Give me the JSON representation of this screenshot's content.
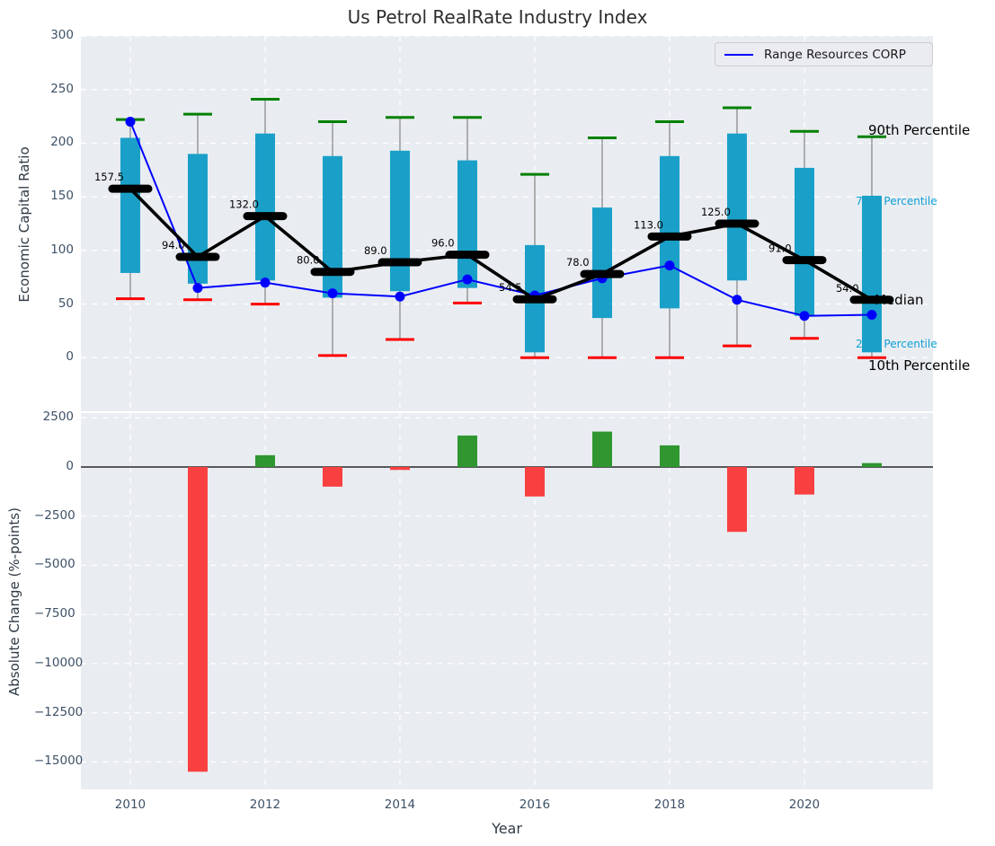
{
  "title": "Us Petrol RealRate Industry Index",
  "legend": {
    "label": "Range Resources CORP"
  },
  "annotations": {
    "p90": "90th Percentile",
    "p75": "75th Percentile",
    "median": "Median",
    "p25": "25th Percentile",
    "p10": "10th Percentile"
  },
  "top_axis": {
    "ylabel": "Economic Capital Ratio",
    "yticks": [
      0,
      50,
      100,
      150,
      200,
      250,
      300
    ],
    "ytick_labels": [
      "0",
      "50",
      "100",
      "150",
      "200",
      "250",
      "300"
    ],
    "ylim": [
      -50,
      300
    ]
  },
  "bottom_axis": {
    "ylabel": "Absolute Change (%-points)",
    "xlabel": "Year",
    "yticks": [
      2500,
      0,
      -2500,
      -5000,
      -7500,
      -10000,
      -12500,
      -15000
    ],
    "ytick_labels": [
      "2500",
      "0",
      "−2500",
      "−5000",
      "−7500",
      "−10000",
      "−12500",
      "−15000"
    ],
    "xticks": [
      2010,
      2012,
      2014,
      2016,
      2018,
      2020
    ],
    "xtick_labels": [
      "2010",
      "2012",
      "2014",
      "2016",
      "2018",
      "2020"
    ],
    "ylim": [
      -16400,
      2740
    ]
  },
  "colors": {
    "axes_bg": "#e9edf1",
    "grid": "#ffffff",
    "tick": "#3d5166",
    "box": "#1aa0c8",
    "whisker": "#8a8a8a",
    "p90_cap": "#008000",
    "p10_cap": "#ff0000",
    "median": "#000000",
    "company_line": "#0000ff",
    "bar_positive": "#2f9630",
    "bar_negative": "#f94040",
    "annotation_black": "#000000",
    "annotation_cyan": "#0d9fd6"
  },
  "chart_data": [
    {
      "type": "boxplot-line",
      "title": "Us Petrol RealRate Industry Index",
      "ylabel": "Economic Capital Ratio",
      "ylim": [
        -50,
        300
      ],
      "years": [
        2010,
        2011,
        2012,
        2013,
        2014,
        2015,
        2016,
        2017,
        2018,
        2019,
        2020,
        2021
      ],
      "p90": [
        222,
        227,
        241,
        220,
        224,
        224,
        171,
        205,
        220,
        233,
        211,
        206
      ],
      "p75": [
        205,
        190,
        209,
        188,
        193,
        184,
        105,
        140,
        188,
        209,
        177,
        151
      ],
      "median": [
        157.5,
        94.0,
        132.0,
        80.0,
        89.0,
        96.0,
        54.5,
        78.0,
        113.0,
        125.0,
        91.0,
        54.0
      ],
      "median_labels": [
        "157.5",
        "94.0",
        "132.0",
        "80.0",
        "89.0",
        "96.0",
        "54.5",
        "78.0",
        "113.0",
        "125.0",
        "91.0",
        "54.0"
      ],
      "p25": [
        79,
        69,
        72,
        56,
        62,
        65,
        5,
        37,
        46,
        72,
        39,
        5
      ],
      "p10": [
        55,
        54,
        50,
        2,
        17,
        51,
        0,
        0,
        0,
        11,
        18,
        0
      ],
      "series": [
        {
          "name": "Range Resources CORP",
          "values": [
            220,
            65,
            70,
            60,
            57,
            73,
            58,
            74,
            86,
            54,
            39,
            40
          ]
        }
      ]
    },
    {
      "type": "bar",
      "ylabel": "Absolute Change (%-points)",
      "xlabel": "Year",
      "ylim": [
        -16400,
        2740
      ],
      "years": [
        2010,
        2011,
        2012,
        2013,
        2014,
        2015,
        2016,
        2017,
        2018,
        2019,
        2020,
        2021
      ],
      "values": [
        null,
        -15500,
        600,
        -1000,
        -150,
        1600,
        -1500,
        1800,
        1100,
        -3300,
        -1400,
        200
      ]
    }
  ]
}
